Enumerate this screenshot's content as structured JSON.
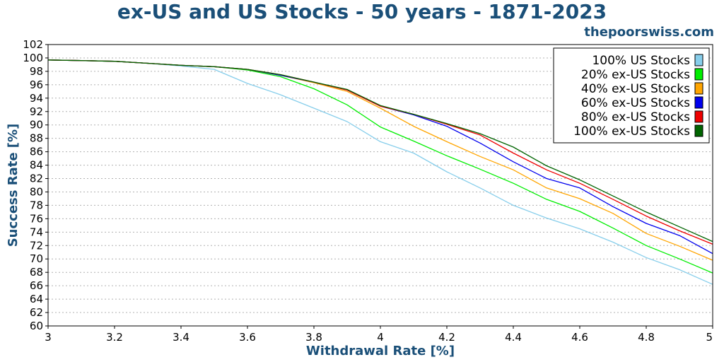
{
  "title": "ex-US and US Stocks - 50 years - 1871-2023",
  "watermark": "thepoorswiss.com",
  "chart_data": {
    "type": "line",
    "title": "ex-US and US Stocks - 50 years - 1871-2023",
    "xlabel": "Withdrawal Rate [%]",
    "ylabel": "Success Rate [%]",
    "xlim": [
      3,
      5
    ],
    "ylim": [
      60,
      102
    ],
    "xticks": [
      "3",
      "3.2",
      "3.4",
      "3.6",
      "3.8",
      "4",
      "4.2",
      "4.4",
      "4.6",
      "4.8",
      "5"
    ],
    "yticks": [
      "60",
      "62",
      "64",
      "66",
      "68",
      "70",
      "72",
      "74",
      "76",
      "78",
      "80",
      "82",
      "84",
      "86",
      "88",
      "90",
      "92",
      "94",
      "96",
      "98",
      "100",
      "102"
    ],
    "grid": true,
    "legend_position": "top-right",
    "x": [
      3.0,
      3.1,
      3.2,
      3.3,
      3.4,
      3.5,
      3.6,
      3.7,
      3.8,
      3.9,
      4.0,
      4.1,
      4.2,
      4.3,
      4.4,
      4.5,
      4.6,
      4.7,
      4.8,
      4.9,
      5.0
    ],
    "series": [
      {
        "name": "100% US Stocks",
        "color": "#87ceeb",
        "values": [
          99.7,
          99.6,
          99.5,
          99.2,
          98.8,
          98.3,
          96.2,
          94.5,
          92.5,
          90.5,
          87.5,
          85.8,
          83.0,
          80.6,
          78.0,
          76.1,
          74.5,
          72.5,
          70.2,
          68.4,
          66.2
        ]
      },
      {
        "name": "20% ex-US Stocks",
        "color": "#00ee00",
        "values": [
          99.7,
          99.6,
          99.5,
          99.2,
          98.9,
          98.7,
          98.2,
          97.2,
          95.4,
          93.0,
          89.7,
          87.6,
          85.4,
          83.4,
          81.3,
          78.9,
          77.1,
          74.6,
          72.0,
          70.0,
          67.9
        ]
      },
      {
        "name": "40% ex-US Stocks",
        "color": "#ffa500",
        "values": [
          99.7,
          99.6,
          99.5,
          99.2,
          98.9,
          98.7,
          98.3,
          97.4,
          96.3,
          95.0,
          92.5,
          89.8,
          87.5,
          85.3,
          83.3,
          80.6,
          79.0,
          76.8,
          73.8,
          71.9,
          69.8
        ]
      },
      {
        "name": "60% ex-US Stocks",
        "color": "#0000ee",
        "values": [
          99.7,
          99.6,
          99.5,
          99.2,
          98.9,
          98.7,
          98.3,
          97.4,
          96.4,
          95.2,
          92.8,
          91.5,
          89.8,
          87.3,
          84.5,
          82.0,
          80.6,
          77.8,
          75.3,
          73.5,
          70.8
        ]
      },
      {
        "name": "80% ex-US Stocks",
        "color": "#ee0000",
        "values": [
          99.7,
          99.6,
          99.5,
          99.2,
          98.9,
          98.7,
          98.3,
          97.5,
          96.4,
          95.2,
          92.8,
          91.6,
          90.1,
          88.5,
          85.8,
          83.3,
          81.3,
          78.9,
          76.4,
          74.2,
          72.2
        ]
      },
      {
        "name": "100% ex-US Stocks",
        "color": "#006400",
        "values": [
          99.7,
          99.6,
          99.5,
          99.2,
          98.9,
          98.7,
          98.3,
          97.5,
          96.4,
          95.3,
          92.9,
          91.6,
          90.2,
          88.7,
          86.7,
          83.9,
          81.8,
          79.4,
          77.0,
          74.8,
          72.6
        ]
      }
    ]
  }
}
